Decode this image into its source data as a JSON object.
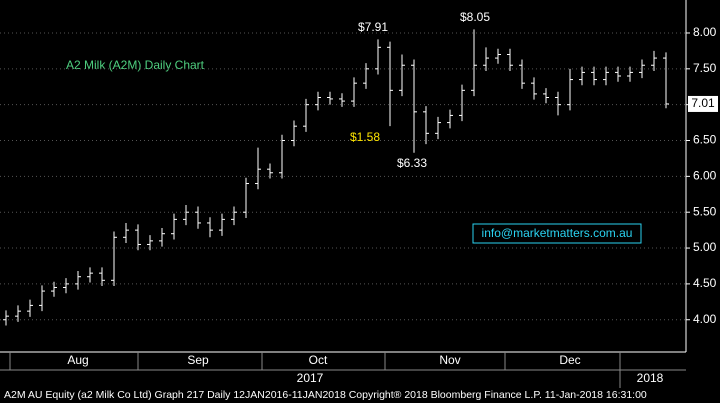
{
  "chart_data": {
    "type": "ohlc",
    "title": "A2 Milk (A2M) Daily Chart",
    "categories": [
      null,
      null,
      null,
      null,
      null,
      null,
      "Aug",
      null,
      null,
      null,
      null,
      null,
      null,
      null,
      null,
      null,
      "Sep",
      null,
      null,
      null,
      null,
      null,
      null,
      null,
      null,
      null,
      "Oct",
      null,
      null,
      null,
      null,
      null,
      null,
      null,
      null,
      null,
      null,
      "Nov",
      null,
      null,
      null,
      null,
      null,
      null,
      null,
      null,
      null,
      "Dec",
      null,
      null,
      null,
      null,
      null,
      null,
      null,
      null
    ],
    "year_labels": [
      "2017",
      "2018"
    ],
    "open": [
      4.0,
      4.05,
      4.12,
      4.2,
      4.4,
      4.45,
      4.5,
      4.6,
      4.65,
      4.55,
      5.15,
      5.25,
      5.05,
      5.1,
      5.2,
      5.4,
      5.5,
      5.35,
      5.25,
      5.4,
      5.5,
      5.9,
      6.1,
      6.05,
      6.5,
      6.7,
      7.0,
      7.1,
      7.08,
      7.05,
      7.3,
      7.5,
      7.8,
      7.2,
      7.55,
      6.9,
      6.6,
      6.75,
      6.85,
      7.2,
      7.55,
      7.65,
      7.7,
      7.55,
      7.3,
      7.15,
      7.1,
      7.0,
      7.35,
      7.45,
      7.35,
      7.45,
      7.4,
      7.45,
      7.55,
      7.65
    ],
    "high": [
      4.13,
      4.2,
      4.28,
      4.48,
      4.53,
      4.58,
      4.68,
      4.73,
      4.73,
      5.23,
      5.35,
      5.33,
      5.18,
      5.28,
      5.48,
      5.6,
      5.58,
      5.43,
      5.48,
      5.58,
      5.98,
      6.4,
      6.18,
      6.58,
      6.78,
      7.08,
      7.18,
      7.18,
      7.16,
      7.38,
      7.58,
      7.91,
      7.88,
      7.7,
      7.63,
      6.98,
      6.83,
      6.93,
      7.28,
      8.05,
      7.8,
      7.78,
      7.78,
      7.63,
      7.38,
      7.23,
      7.18,
      7.5,
      7.53,
      7.53,
      7.53,
      7.53,
      7.53,
      7.63,
      7.75,
      7.73
    ],
    "low": [
      3.92,
      3.97,
      4.04,
      4.12,
      4.32,
      4.37,
      4.42,
      4.52,
      4.47,
      4.47,
      5.07,
      4.97,
      4.97,
      5.02,
      5.12,
      5.32,
      5.27,
      5.15,
      5.17,
      5.32,
      5.42,
      5.82,
      5.97,
      5.97,
      6.42,
      6.62,
      6.92,
      7.0,
      6.97,
      6.97,
      7.22,
      7.42,
      6.7,
      7.12,
      6.33,
      6.45,
      6.52,
      6.67,
      6.77,
      7.12,
      7.47,
      7.57,
      7.47,
      7.22,
      7.07,
      7.02,
      6.85,
      6.92,
      7.27,
      7.27,
      7.27,
      7.32,
      7.32,
      7.37,
      7.47,
      6.95
    ],
    "close": [
      4.05,
      4.12,
      4.2,
      4.4,
      4.45,
      4.5,
      4.6,
      4.65,
      4.55,
      5.15,
      5.25,
      5.05,
      5.1,
      5.2,
      5.4,
      5.5,
      5.35,
      5.25,
      5.4,
      5.5,
      5.9,
      6.1,
      6.05,
      6.5,
      6.7,
      7.0,
      7.1,
      7.08,
      7.05,
      7.3,
      7.5,
      7.8,
      7.2,
      7.55,
      6.9,
      6.6,
      6.75,
      6.85,
      7.2,
      7.55,
      7.65,
      7.7,
      7.55,
      7.3,
      7.15,
      7.1,
      7.0,
      7.35,
      7.45,
      7.35,
      7.45,
      7.4,
      7.45,
      7.55,
      7.65,
      7.01
    ],
    "color": "#ffffff",
    "ylim": [
      3.55,
      8.46
    ],
    "yticks": [
      {
        "value": 4,
        "label": "4.00"
      },
      {
        "value": 4.5,
        "label": "4.50"
      },
      {
        "value": 5,
        "label": "5.00"
      },
      {
        "value": 5.5,
        "label": "5.50"
      },
      {
        "value": 6,
        "label": "6.00"
      },
      {
        "value": 6.5,
        "label": "6.50"
      },
      {
        "value": 7,
        "label": "7.00"
      },
      {
        "value": 7.5,
        "label": "7.50"
      },
      {
        "value": 8,
        "label": "8.00"
      }
    ],
    "grid": true,
    "annotations": [
      "$7.91",
      "$8.05",
      "$1.58",
      "$6.33"
    ],
    "contact": "info@marketmatters.com.au",
    "footer": "A2M AU Equity (a2 Milk Co Ltd) Graph 217  Daily 12JAN2016-11JAN2018  Copyright® 2018 Bloomberg Finance L.P.    11-Jan-2018 16:31:00"
  }
}
